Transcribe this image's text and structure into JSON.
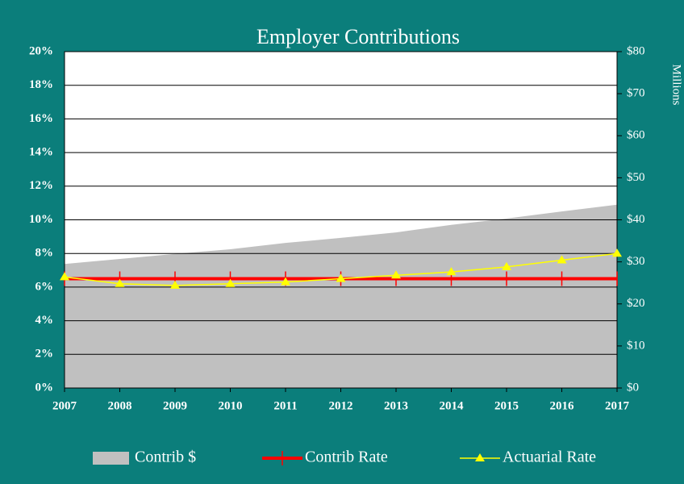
{
  "chart_data": {
    "type": "area-line",
    "title": "Employer Contributions",
    "y2label": "Millions",
    "x": [
      2007,
      2008,
      2009,
      2010,
      2011,
      2012,
      2013,
      2014,
      2015,
      2016,
      2017
    ],
    "xlim": [
      2007,
      2017
    ],
    "xticks": [
      2007,
      2008,
      2009,
      2010,
      2011,
      2012,
      2013,
      2014,
      2015,
      2016,
      2017
    ],
    "ylim": [
      0,
      20
    ],
    "yticks": [
      {
        "value": 0,
        "label": "0%"
      },
      {
        "value": 2,
        "label": "2%"
      },
      {
        "value": 4,
        "label": "4%"
      },
      {
        "value": 6,
        "label": "6%"
      },
      {
        "value": 8,
        "label": "8%"
      },
      {
        "value": 10,
        "label": "10%"
      },
      {
        "value": 12,
        "label": "12%"
      },
      {
        "value": 14,
        "label": "14%"
      },
      {
        "value": 16,
        "label": "16%"
      },
      {
        "value": 18,
        "label": "18%"
      },
      {
        "value": 20,
        "label": "20%"
      }
    ],
    "y2lim": [
      0,
      80
    ],
    "y2ticks": [
      {
        "value": 0,
        "label": "$0"
      },
      {
        "value": 10,
        "label": "$10"
      },
      {
        "value": 20,
        "label": "$20"
      },
      {
        "value": 30,
        "label": "$30"
      },
      {
        "value": 40,
        "label": "$40"
      },
      {
        "value": 50,
        "label": "$50"
      },
      {
        "value": 60,
        "label": "$60"
      },
      {
        "value": 70,
        "label": "$70"
      },
      {
        "value": 80,
        "label": "$80"
      }
    ],
    "grid": true,
    "series": [
      {
        "name": "Contrib $",
        "kind": "area",
        "axis": "y2",
        "color": "#c0c0c0",
        "values": [
          29.5,
          30.7,
          31.9,
          33.0,
          34.5,
          35.7,
          37.0,
          38.8,
          40.3,
          42.0,
          43.6
        ]
      },
      {
        "name": "Contrib Rate",
        "kind": "line",
        "color": "#ff0000",
        "values": [
          6.5,
          6.5,
          6.5,
          6.5,
          6.5,
          6.5,
          6.5,
          6.5,
          6.5,
          6.5,
          6.5
        ]
      },
      {
        "name": "Actuarial Rate",
        "kind": "line",
        "color": "#ffff00",
        "values": [
          6.6,
          6.2,
          6.1,
          6.2,
          6.3,
          6.5,
          6.7,
          6.9,
          7.2,
          7.6,
          8.0
        ]
      }
    ]
  }
}
